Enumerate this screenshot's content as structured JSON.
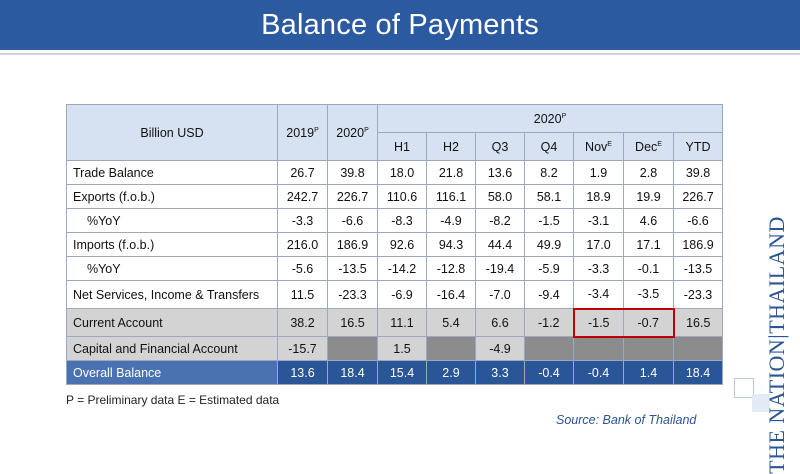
{
  "title": "Balance of Payments",
  "table": {
    "corner": "Billion USD",
    "year_cols": [
      {
        "year": "2019",
        "sup": "P"
      },
      {
        "year": "2020",
        "sup": "P"
      }
    ],
    "group_header": {
      "year": "2020",
      "sup": "P"
    },
    "sub_cols": [
      {
        "label": "H1",
        "sup": ""
      },
      {
        "label": "H2",
        "sup": ""
      },
      {
        "label": "Q3",
        "sup": ""
      },
      {
        "label": "Q4",
        "sup": ""
      },
      {
        "label": "Nov",
        "sup": "E"
      },
      {
        "label": "Dec",
        "sup": "E"
      },
      {
        "label": "YTD",
        "sup": ""
      }
    ],
    "rows": [
      {
        "label": "Trade Balance",
        "values": [
          "26.7",
          "39.8",
          "18.0",
          "21.8",
          "13.6",
          "8.2",
          "1.9",
          "2.8",
          "39.8"
        ]
      },
      {
        "label": "Exports (f.o.b.)",
        "values": [
          "242.7",
          "226.7",
          "110.6",
          "116.1",
          "58.0",
          "58.1",
          "18.9",
          "19.9",
          "226.7"
        ]
      },
      {
        "label": "%YoY",
        "values": [
          "-3.3",
          "-6.6",
          "-8.3",
          "-4.9",
          "-8.2",
          "-1.5",
          "-3.1",
          "4.6",
          "-6.6"
        ]
      },
      {
        "label": "Imports (f.o.b.)",
        "values": [
          "216.0",
          "186.9",
          "92.6",
          "94.3",
          "44.4",
          "49.9",
          "17.0",
          "17.1",
          "186.9"
        ]
      },
      {
        "label": "%YoY",
        "values": [
          "-5.6",
          "-13.5",
          "-14.2",
          "-12.8",
          "-19.4",
          "-5.9",
          "-3.3",
          "-0.1",
          "-13.5"
        ]
      },
      {
        "label": "Net Services, Income & Transfers",
        "values": [
          "11.5",
          "-23.3",
          "-6.9",
          "-16.4",
          "-7.0",
          "-9.4",
          "-3.4",
          "-3.5",
          "-23.3"
        ]
      },
      {
        "label": "Current Account",
        "values": [
          "38.2",
          "16.5",
          "11.1",
          "5.4",
          "6.6",
          "-1.2",
          "-1.5",
          "-0.7",
          "16.5"
        ]
      },
      {
        "label": "Capital and Financial Account",
        "values": [
          "-15.7",
          "",
          "1.5",
          "",
          "-4.9",
          "",
          "",
          "",
          ""
        ]
      },
      {
        "label": "Overall Balance",
        "values": [
          "13.6",
          "18.4",
          "15.4",
          "2.9",
          "3.3",
          "-0.4",
          "-0.4",
          "1.4",
          "18.4"
        ]
      }
    ]
  },
  "footnote": "P = Preliminary data E = Estimated data",
  "source": "Source: Bank of Thailand",
  "logo": {
    "text": "NATION THAILAND",
    "small": "THE"
  },
  "colors": {
    "title_bar": "#2c5aa0",
    "header_bg": "#d6e2f1",
    "highlight_row": "#d3d3d3",
    "overall_row": "#2a5596",
    "callout_border": "#c00000"
  }
}
